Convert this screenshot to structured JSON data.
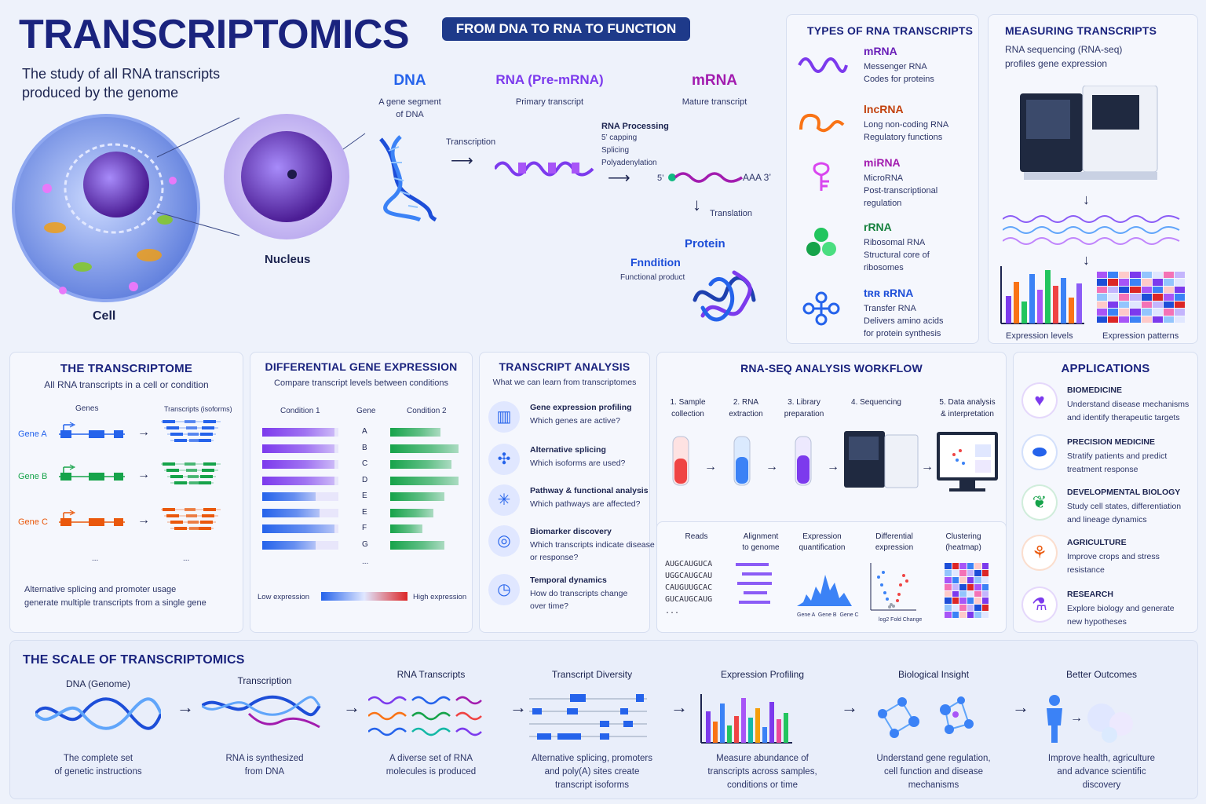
{
  "header": {
    "title": "TRANSCRIPTOMICS",
    "subtitle_line1": "The study of all RNA transcripts",
    "subtitle_line2": "produced by the genome",
    "banner": "FROM DNA TO RNA TO FUNCTION"
  },
  "cell": {
    "cell_label": "Cell",
    "nucleus_label": "Nucleus"
  },
  "flow": {
    "dna_title": "DNA",
    "dna_desc1": "A gene segment",
    "dna_desc2": "of DNA",
    "rna_title": "RNA (Pre-mRNA)",
    "rna_desc": "Primary transcript",
    "mrna_title": "mRNA",
    "mrna_desc": "Mature transcript",
    "transcription": "Transcription",
    "processing_title": "RNA Processing",
    "processing_1": "5’ capping",
    "processing_2": "Splicing",
    "processing_3": "Polyadenylation",
    "five_prime": "5’",
    "aaa": "AAA 3’",
    "translation": "Translation",
    "protein": "Protein",
    "function": "Fnndition",
    "function_desc": "Functional product"
  },
  "types": {
    "title": "TYPES OF RNA TRANSCRIPTS",
    "items": [
      {
        "name": "mRNA",
        "l1": "Messenger RNA",
        "l2": "Codes for proteins",
        "l3": "",
        "color": "#6a1fb8"
      },
      {
        "name": "lncRNA",
        "l1": "Long non-coding RNA",
        "l2": "Regulatory functions",
        "l3": "",
        "color": "#c2410c"
      },
      {
        "name": "miRNA",
        "l1": "MicroRNA",
        "l2": "Post-transcriptional",
        "l3": "regulation",
        "color": "#a21caf"
      },
      {
        "name": "rRNA",
        "l1": "Ribosomal RNA",
        "l2": "Structural core of",
        "l3": "ribosomes",
        "color": "#15803d"
      },
      {
        "name": "tʀʀ ʀRNA",
        "l1": "Transfer RNA",
        "l2": "Delivers amino acids",
        "l3": "for protein synthesis",
        "color": "#1d4ed8"
      }
    ]
  },
  "measuring": {
    "title": "MEASURING TRANSCRIPTS",
    "desc1": "RNA sequencing (RNA-seq)",
    "desc2": "profiles gene expression",
    "label_levels": "Expression levels",
    "label_patterns": "Expression patterns"
  },
  "transcriptome": {
    "title": "THE TRANSCRIPTOME",
    "subtitle": "All RNA transcripts in a cell or condition",
    "col_genes": "Genes",
    "col_transcripts": "Transcripts (isoforms)",
    "genes": [
      {
        "label": "Gene A",
        "color": "#2563eb"
      },
      {
        "label": "Gene B",
        "color": "#16a34a"
      },
      {
        "label": "Gene C",
        "color": "#ea580c"
      }
    ],
    "ellipsis": "...",
    "note1": "Alternative splicing and promoter usage",
    "note2": "generate multiple transcripts from a single gene"
  },
  "dge": {
    "title": "DIFFERENTIAL GENE EXPRESSION",
    "subtitle": "Compare transcript levels between conditions",
    "col1": "Condition 1",
    "col_gene": "Gene",
    "col2": "Condition 2",
    "genes": [
      "A",
      "B",
      "C",
      "D",
      "E",
      "E",
      "F",
      "G"
    ],
    "cond1_levels": [
      0.95,
      0.95,
      0.95,
      0.95,
      0.7,
      0.75,
      0.95,
      0.7
    ],
    "cond2_levels": [
      0.7,
      0.95,
      0.85,
      0.95,
      0.75,
      0.6,
      0.45,
      0.75
    ],
    "ellipsis": "...",
    "low": "Low expression",
    "high": "High expression"
  },
  "analysis": {
    "title": "TRANSCRIPT ANALYSIS",
    "subtitle": "What we can learn from transcriptomes",
    "items": [
      {
        "title": "Gene expression profiling",
        "l1": "Which genes are active?",
        "l2": ""
      },
      {
        "title": "Alternative splicing",
        "l1": "Which isoforms are used?",
        "l2": ""
      },
      {
        "title": "Pathway & functional analysis",
        "l1": "Which pathways are affected?",
        "l2": ""
      },
      {
        "title": "Biomarker discovery",
        "l1": "Which transcripts indicate disease",
        "l2": "or response?"
      },
      {
        "title": "Temporal dynamics",
        "l1": "How do transcripts change",
        "l2": "over time?"
      }
    ]
  },
  "workflow": {
    "title": "RNA-SEQ ANALYSIS WORKFLOW",
    "steps": [
      {
        "l1": "1. Sample",
        "l2": "collection"
      },
      {
        "l1": "2. RNA",
        "l2": "extraction"
      },
      {
        "l1": "3. Library",
        "l2": "preparation"
      },
      {
        "l1": "4. Sequencing",
        "l2": ""
      },
      {
        "l1": "5. Data analysis",
        "l2": "& interpretation"
      }
    ],
    "sub": [
      {
        "l1": "Reads",
        "l2": ""
      },
      {
        "l1": "Alignment",
        "l2": "to genome"
      },
      {
        "l1": "Expression",
        "l2": "quantification"
      },
      {
        "l1": "Differential",
        "l2": "expression"
      },
      {
        "l1": "Clustering",
        "l2": "(heatmap)"
      }
    ],
    "reads": [
      "AUGCAUGUCA",
      "UGGCAUGCAU",
      "CAUGUUGCAC",
      "GUCAUGCAUG",
      "..."
    ],
    "genes_axis": "Gene A  Gene B  Gene C",
    "log2": "log2 Fold Change"
  },
  "applications": {
    "title": "APPLICATIONS",
    "items": [
      {
        "title": "BIOMEDICINE",
        "l1": "Understand disease mechanisms",
        "l2": "and identify therapeutic targets",
        "color": "#7c3aed"
      },
      {
        "title": "PRECISION MEDICINE",
        "l1": "Stratify patients and predict",
        "l2": "treatment response",
        "color": "#2563eb"
      },
      {
        "title": "DEVELOPMENTAL BIOLOGY",
        "l1": "Study cell states, differentiation",
        "l2": "and lineage dynamics",
        "color": "#16a34a"
      },
      {
        "title": "AGRICULTURE",
        "l1": "Improve crops and stress",
        "l2": "resistance",
        "color": "#ea580c"
      },
      {
        "title": "RESEARCH",
        "l1": "Explore biology and generate",
        "l2": "new hypotheses",
        "color": "#7c3aed"
      }
    ]
  },
  "scale": {
    "title": "THE SCALE OF TRANSCRIPTOMICS",
    "steps": [
      {
        "title": "DNA (Genome)",
        "l1": "The complete set",
        "l2": "of genetic instructions",
        "l3": ""
      },
      {
        "title": "Transcription",
        "l1": "RNA is synthesized",
        "l2": "from DNA",
        "l3": ""
      },
      {
        "title": "RNA Transcripts",
        "l1": "A diverse set of RNA",
        "l2": "molecules is produced",
        "l3": ""
      },
      {
        "title": "Transcript Diversity",
        "l1": "Alternative splicing, promoters",
        "l2": "and poly(A) sites create",
        "l3": "transcript isoforms"
      },
      {
        "title": "Expression Profiling",
        "l1": "Measure abundance of",
        "l2": "transcripts across samples,",
        "l3": "conditions or time"
      },
      {
        "title": "Biological Insight",
        "l1": "Understand gene regulation,",
        "l2": "cell function and disease",
        "l3": "mechanisms"
      },
      {
        "title": "Better Outcomes",
        "l1": "Improve health, agriculture",
        "l2": "and advance scientific",
        "l3": "discovery"
      }
    ]
  },
  "colors": {
    "navy": "#1a237e",
    "blue": "#2563eb",
    "purple": "#7c3aed",
    "green": "#16a34a",
    "orange": "#ea580c",
    "red": "#dc2626"
  }
}
